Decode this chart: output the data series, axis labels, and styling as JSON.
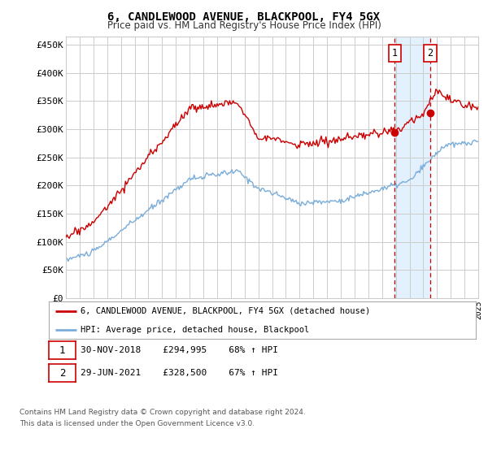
{
  "title": "6, CANDLEWOOD AVENUE, BLACKPOOL, FY4 5GX",
  "subtitle": "Price paid vs. HM Land Registry's House Price Index (HPI)",
  "ylabel_ticks": [
    "£0",
    "£50K",
    "£100K",
    "£150K",
    "£200K",
    "£250K",
    "£300K",
    "£350K",
    "£400K",
    "£450K"
  ],
  "ytick_values": [
    0,
    50000,
    100000,
    150000,
    200000,
    250000,
    300000,
    350000,
    400000,
    450000
  ],
  "ylim": [
    0,
    465000
  ],
  "year_start": 1995,
  "year_end": 2025,
  "marker1_date": 2018.92,
  "marker1_value": 294995,
  "marker1_label": "1",
  "marker1_date_text": "30-NOV-2018",
  "marker1_price_text": "£294,995",
  "marker1_hpi_text": "68% ↑ HPI",
  "marker2_date": 2021.5,
  "marker2_value": 328500,
  "marker2_label": "2",
  "marker2_date_text": "29-JUN-2021",
  "marker2_price_text": "£328,500",
  "marker2_hpi_text": "67% ↑ HPI",
  "line1_color": "#cc0000",
  "line2_color": "#7aadd9",
  "shaded_region_color": "#ddeeff",
  "vline_color": "#cc0000",
  "background_color": "#ffffff",
  "grid_color": "#cccccc",
  "legend1_label": "6, CANDLEWOOD AVENUE, BLACKPOOL, FY4 5GX (detached house)",
  "legend2_label": "HPI: Average price, detached house, Blackpool",
  "footer_line1": "Contains HM Land Registry data © Crown copyright and database right 2024.",
  "footer_line2": "This data is licensed under the Open Government Licence v3.0."
}
